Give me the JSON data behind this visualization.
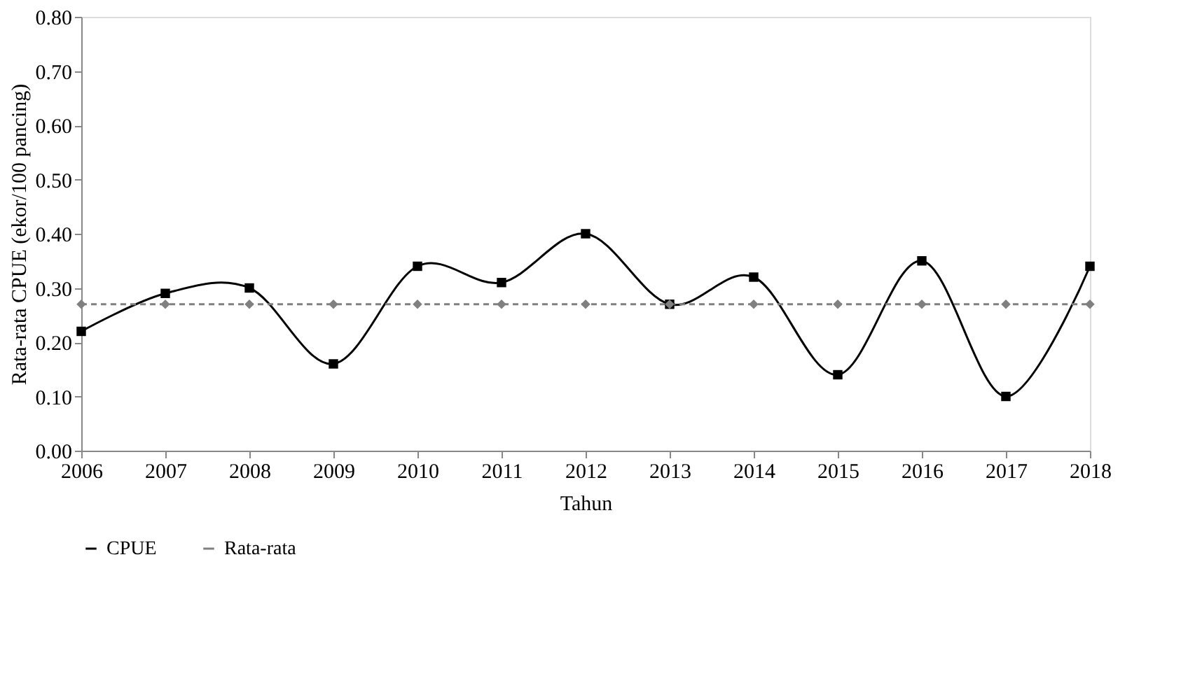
{
  "chart_data": {
    "type": "line",
    "xlabel": "Tahun",
    "ylabel": "Rata-rata CPUE  (ekor/100 pancing)",
    "categories": [
      "2006",
      "2007",
      "2008",
      "2009",
      "2010",
      "2011",
      "2012",
      "2013",
      "2014",
      "2015",
      "2016",
      "2017",
      "2018"
    ],
    "series": [
      {
        "name": "CPUE",
        "color": "#000000",
        "marker": "square",
        "line_style": "solid",
        "values": [
          0.22,
          0.29,
          0.3,
          0.16,
          0.34,
          0.31,
          0.4,
          0.27,
          0.32,
          0.14,
          0.35,
          0.1,
          0.34
        ]
      },
      {
        "name": "Rata-rata",
        "color": "#808080",
        "marker": "diamond",
        "line_style": "dashed",
        "values": [
          0.27,
          0.27,
          0.27,
          0.27,
          0.27,
          0.27,
          0.27,
          0.27,
          0.27,
          0.27,
          0.27,
          0.27,
          0.27
        ]
      }
    ],
    "ylim": [
      0,
      0.8
    ],
    "yticks": [
      {
        "value": 0,
        "label": "0.00"
      },
      {
        "value": 0.1,
        "label": "0.10"
      },
      {
        "value": 0.2,
        "label": "0.20"
      },
      {
        "value": 0.3,
        "label": "0.30"
      },
      {
        "value": 0.4,
        "label": "0.40"
      },
      {
        "value": 0.5,
        "label": "0.50"
      },
      {
        "value": 0.6,
        "label": "0.60"
      },
      {
        "value": 0.7,
        "label": "0.70"
      },
      {
        "value": 0.8,
        "label": "0.80"
      }
    ],
    "grid": false,
    "legend": "bottom"
  }
}
